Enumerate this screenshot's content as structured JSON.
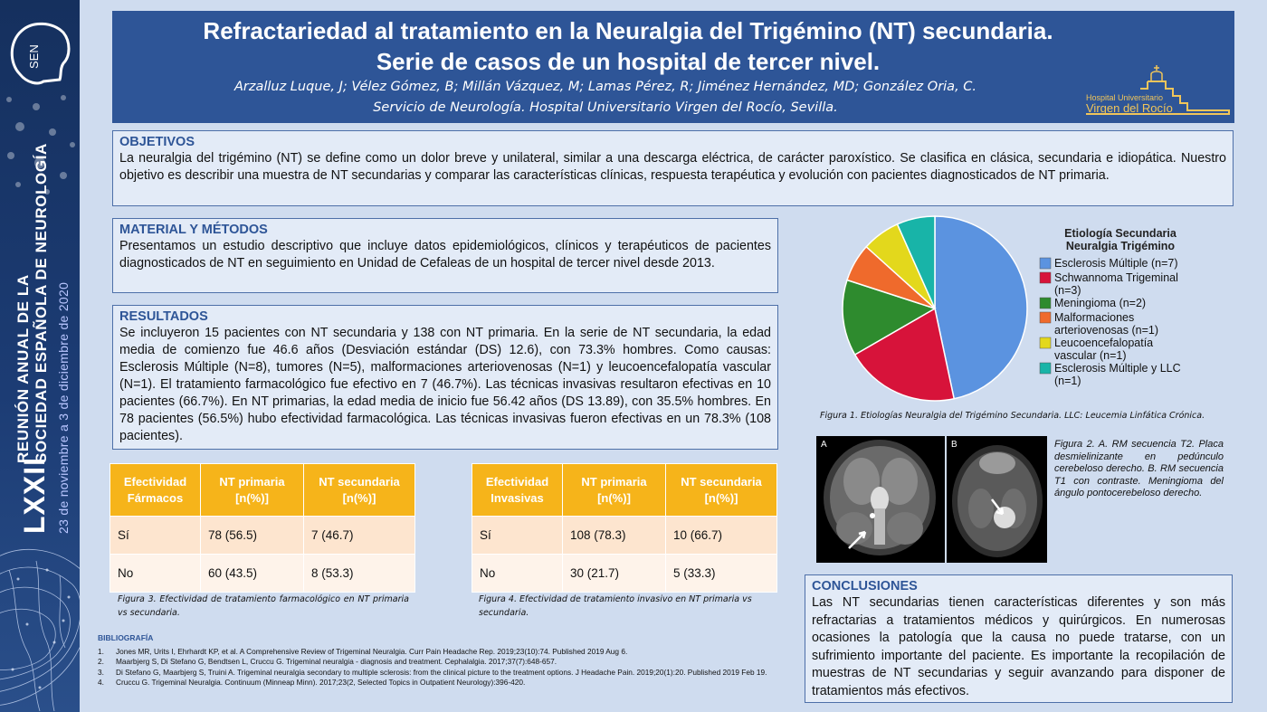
{
  "sidebar": {
    "logo_text": "SEN",
    "logo_subtitle": "Sociedad Española de Neurología",
    "lxxii": "LXXII",
    "line1": "REUNIÓN ANUAL DE LA",
    "line2": "SOCIEDAD ESPAÑOLA DE NEUROLOGÍA",
    "date": "23 de noviembre a 3 de diciembre de 2020"
  },
  "header": {
    "title_line1": "Refractariedad al tratamiento en la Neuralgia del Trigémino (NT) secundaria.",
    "title_line2": "Serie de casos de un hospital de tercer nivel.",
    "authors": "Arzalluz Luque, J; Vélez Gómez, B; Millán Vázquez, M; Lamas Pérez, R; Jiménez Hernández, MD; González Oria, C.",
    "affiliation": "Servicio de Neurología. Hospital Universitario Virgen del Rocío, Sevilla.",
    "hospital_line1": "Hospital Universitario",
    "hospital_line2": "Virgen del Rocío"
  },
  "objetivos": {
    "title": "OBJETIVOS",
    "body": "La neuralgia del trigémino (NT) se define como un dolor breve y unilateral, similar a una descarga eléctrica, de carácter paroxístico. Se clasifica en clásica, secundaria e idiopática. Nuestro objetivo es describir una muestra de NT secundarias y comparar las características clínicas, respuesta terapéutica y evolución con pacientes diagnosticados de NT primaria."
  },
  "material": {
    "title": "MATERIAL Y MÉTODOS",
    "body": "Presentamos un estudio descriptivo que incluye datos epidemiológicos, clínicos y terapéuticos de pacientes diagnosticados de NT en seguimiento en Unidad de Cefaleas de un hospital de tercer nivel desde 2013."
  },
  "resultados": {
    "title": "RESULTADOS",
    "body": "Se incluyeron 15 pacientes con NT secundaria y 138 con NT primaria. En la serie de NT secundaria, la edad media de comienzo fue 46.6 años (Desviación estándar (DS) 12.6), con 73.3% hombres. Como causas: Esclerosis Múltiple (N=8), tumores (N=5), malformaciones arteriovenosas (N=1) y leucoencefalopatía vascular (N=1). El tratamiento farmacológico fue efectivo en 7 (46.7%). Las técnicas invasivas resultaron efectivas en 10 pacientes (66.7%). En NT primarias, la edad media de inicio fue 56.42 años (DS 13.89), con 35.5% hombres. En 78 pacientes (56.5%) hubo efectividad farmacológica. Las técnicas invasivas fueron efectivas en un 78.3% (108 pacientes)."
  },
  "table1": {
    "headers": [
      "Efectividad\nFármacos",
      "NT primaria\n[n(%)]",
      "NT secundaria\n[n(%)]"
    ],
    "rows": [
      [
        "Sí",
        "78 (56.5)",
        "7 (46.7)"
      ],
      [
        "No",
        "60 (43.5)",
        "8 (53.3)"
      ]
    ],
    "caption": "Figura 3. Efectividad de tratamiento farmacológico en NT primaria vs secundaria."
  },
  "table2": {
    "headers": [
      "Efectividad\nInvasivas",
      "NT primaria\n[n(%)]",
      "NT secundaria\n[n(%)]"
    ],
    "rows": [
      [
        "Sí",
        "108 (78.3)",
        "10 (66.7)"
      ],
      [
        "No",
        "30 (21.7)",
        "5 (33.3)"
      ]
    ],
    "caption": "Figura 4. Efectividad de tratamiento invasivo en NT primaria vs secundaria."
  },
  "chart_data": {
    "type": "pie",
    "title": "Etiología Secundaria\nNeuralgia Trigémino",
    "categories": [
      "Esclerosis Múltiple (n=7)",
      "Schwannoma Trigeminal (n=3)",
      "Meningioma (n=2)",
      "Malformaciones arteriovenosas (n=1)",
      "Leucoencefalopatía vascular (n=1)",
      "Esclerosis Múltiple y LLC (n=1)"
    ],
    "values": [
      7,
      3,
      2,
      1,
      1,
      1
    ],
    "colors": [
      "#5b93e0",
      "#d7133a",
      "#2e8b2e",
      "#ef6a2c",
      "#e3d81c",
      "#18b4a8"
    ],
    "legend_position": "right"
  },
  "figure1_caption": "Figura 1. Etiologías Neuralgia del Trigémino Secundaria. LLC: Leucemia Linfática Crónica.",
  "figure2": {
    "label_a": "A",
    "label_b": "B",
    "caption": "Figura 2. A. RM secuencia T2. Placa desmielinizante en pedúnculo cerebeloso derecho. B. RM secuencia T1 con contraste. Meningioma del ángulo pontocerebeloso derecho."
  },
  "conclusiones": {
    "title": "CONCLUSIONES",
    "body": "Las NT secundarias tienen características diferentes y son más refractarias a tratamientos médicos y quirúrgicos. En numerosas ocasiones la patología que la causa no puede tratarse, con un sufrimiento importante del paciente. Es importante la recopilación de muestras de NT secundarias y seguir avanzando para disponer de tratamientos más efectivos."
  },
  "bibliografia": {
    "title": "BIBLIOGRAFÍA",
    "items": [
      {
        "num": "1.",
        "text": "Jones MR, Urits I, Ehrhardt KP, et al. A Comprehensive Review of Trigeminal Neuralgia. Curr Pain Headache Rep. 2019;23(10):74. Published 2019 Aug 6."
      },
      {
        "num": "2.",
        "text": "Maarbjerg S, Di Stefano G, Bendtsen L, Cruccu G. Trigeminal neuralgia - diagnosis and treatment. Cephalalgia. 2017;37(7):648-657."
      },
      {
        "num": "3.",
        "text": "Di Stefano G, Maarbjerg S, Truini A. Trigeminal neuralgia secondary to multiple sclerosis: from the clinical picture to the treatment options. J Headache Pain. 2019;20(1):20. Published 2019 Feb 19."
      },
      {
        "num": "4.",
        "text": "Cruccu G. Trigeminal Neuralgia. Continuum (Minneap Minn). 2017;23(2, Selected Topics in Outpatient Neurology):396-420."
      }
    ]
  }
}
